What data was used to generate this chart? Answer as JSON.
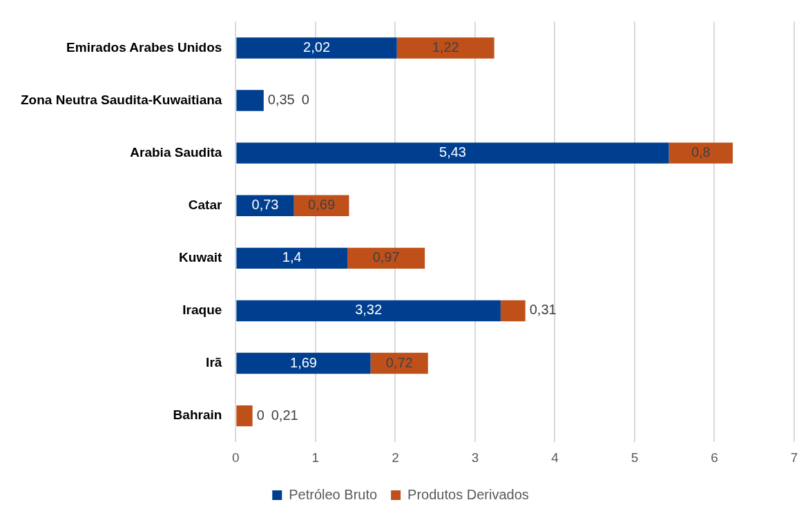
{
  "chart_data": {
    "type": "bar",
    "orientation": "horizontal",
    "stacked": true,
    "categories": [
      "Emirados Arabes Unidos",
      "Zona Neutra Saudita-Kuwaitiana",
      "Arabia Saudita",
      "Catar",
      "Kuwait",
      "Iraque",
      "Irã",
      "Bahrain"
    ],
    "series": [
      {
        "name": "Petróleo Bruto",
        "color": "#003f8f",
        "values": [
          2.02,
          0.35,
          5.43,
          0.73,
          1.4,
          3.32,
          1.69,
          0
        ],
        "value_labels": [
          "2,02",
          "0,35",
          "5,43",
          "0,73",
          "1,4",
          "3,32",
          "1,69",
          "0"
        ]
      },
      {
        "name": "Produtos Derivados",
        "color": "#c0501a",
        "values": [
          1.22,
          0,
          0.8,
          0.69,
          0.97,
          0.31,
          0.72,
          0.21
        ],
        "value_labels": [
          "1,22",
          "0",
          "0,8",
          "0,69",
          "0,97",
          "0,31",
          "0,72",
          "0,21"
        ]
      }
    ],
    "xlim": [
      0,
      7
    ],
    "xticks": [
      0,
      1,
      2,
      3,
      4,
      5,
      6,
      7
    ],
    "grid": "x",
    "legend": "bottom"
  }
}
